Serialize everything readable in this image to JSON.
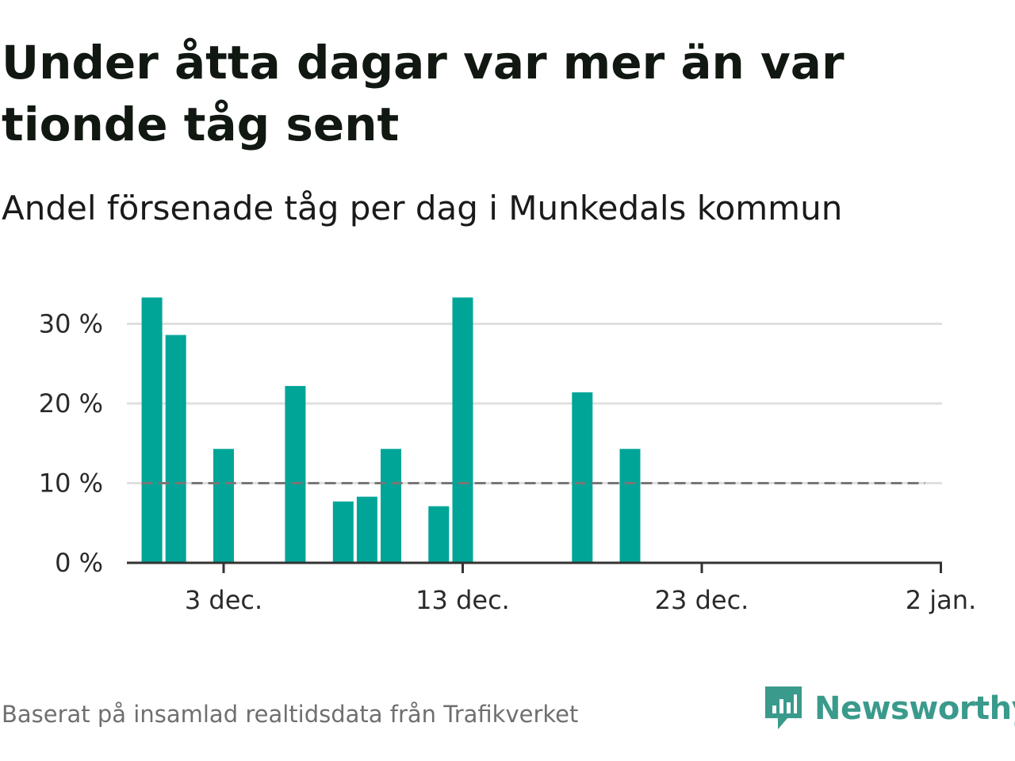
{
  "title": "Under åtta dagar var mer än var tionde tåg sent",
  "subtitle": "Andel försenade tåg per dag i Munkedals kommun",
  "source": "Baserat på insamlad realtidsdata från Trafikverket",
  "brand": {
    "name": "Newsworthy",
    "color": "#3a9a8c",
    "icon": "newsworthy-logo-icon"
  },
  "colors": {
    "bar": "#00a598",
    "reference": "#777777",
    "grid": "#e0e0e0",
    "axis": "#333333"
  },
  "chart_data": {
    "type": "bar",
    "x_unit": "date",
    "bars": [
      {
        "date": "2023-11-30",
        "value": 33.3
      },
      {
        "date": "2023-12-01",
        "value": 28.6
      },
      {
        "date": "2023-12-03",
        "value": 14.3
      },
      {
        "date": "2023-12-06",
        "value": 22.2
      },
      {
        "date": "2023-12-08",
        "value": 7.7
      },
      {
        "date": "2023-12-09",
        "value": 8.3
      },
      {
        "date": "2023-12-10",
        "value": 14.3
      },
      {
        "date": "2023-12-12",
        "value": 7.1
      },
      {
        "date": "2023-12-13",
        "value": 33.3
      },
      {
        "date": "2023-12-18",
        "value": 21.4
      },
      {
        "date": "2023-12-20",
        "value": 14.3
      }
    ],
    "reference_line": {
      "value": 10,
      "style": "dashed",
      "x_range": [
        "2023-11-30",
        "2024-01-01"
      ]
    },
    "ylim": [
      0,
      30
    ],
    "yticks": [
      {
        "value": 0,
        "label": "0 %"
      },
      {
        "value": 10,
        "label": "10 %"
      },
      {
        "value": 20,
        "label": "20 %"
      },
      {
        "value": 30,
        "label": "30 %"
      }
    ],
    "xticks": [
      {
        "date": "2023-12-03",
        "label": "3 dec."
      },
      {
        "date": "2023-12-13",
        "label": "13 dec."
      },
      {
        "date": "2023-12-23",
        "label": "23 dec."
      },
      {
        "date": "2024-01-02",
        "label": "2 jan."
      }
    ],
    "grid": true,
    "legend": false
  }
}
